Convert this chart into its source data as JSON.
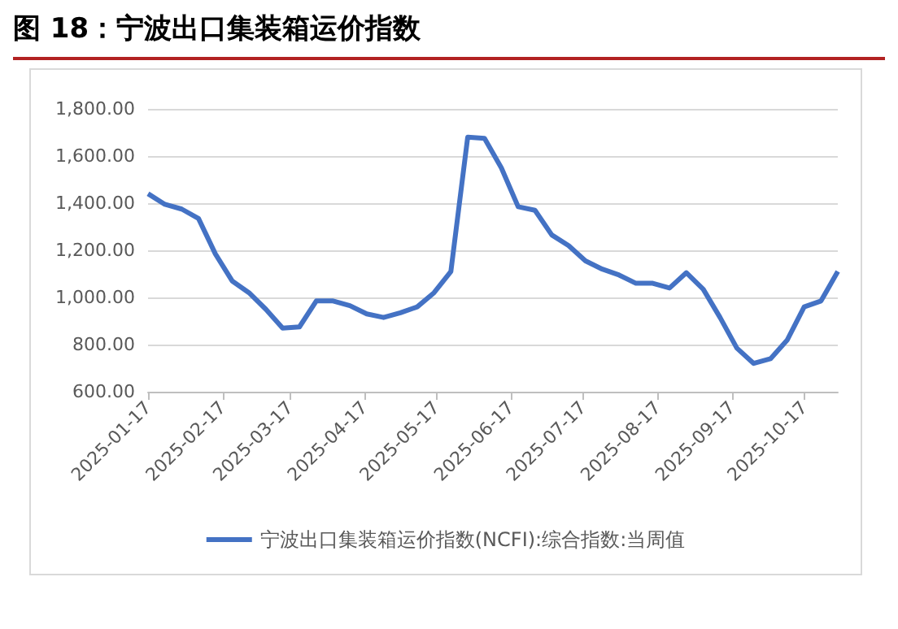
{
  "chart_data": {
    "type": "line",
    "title": "图 18：宁波出口集装箱运价指数",
    "x": [
      "2025-01-17",
      "2025-01-24",
      "2025-01-31",
      "2025-02-07",
      "2025-02-14",
      "2025-02-21",
      "2025-02-28",
      "2025-03-07",
      "2025-03-14",
      "2025-03-21",
      "2025-03-28",
      "2025-04-04",
      "2025-04-11",
      "2025-04-18",
      "2025-04-25",
      "2025-05-02",
      "2025-05-09",
      "2025-05-16",
      "2025-05-23",
      "2025-05-30",
      "2025-06-06",
      "2025-06-13",
      "2025-06-20",
      "2025-06-27",
      "2025-07-04",
      "2025-07-11",
      "2025-07-18",
      "2025-07-25",
      "2025-08-01",
      "2025-08-08",
      "2025-08-15",
      "2025-08-22",
      "2025-08-29",
      "2025-09-05",
      "2025-09-12",
      "2025-09-19",
      "2025-09-26",
      "2025-10-03",
      "2025-10-10",
      "2025-10-17",
      "2025-10-24",
      "2025-10-31"
    ],
    "series": [
      {
        "name": "宁波出口集装箱运价指数(NCFI):综合指数:当周值",
        "color": "#4472c4",
        "values": [
          1440,
          1395,
          1375,
          1335,
          1185,
          1070,
          1020,
          950,
          870,
          875,
          985,
          985,
          965,
          930,
          915,
          935,
          960,
          1020,
          1110,
          1680,
          1675,
          1550,
          1385,
          1370,
          1265,
          1220,
          1155,
          1120,
          1095,
          1060,
          1060,
          1040,
          1105,
          1035,
          915,
          785,
          720,
          740,
          820,
          960,
          985,
          1110
        ]
      }
    ],
    "xlim": [
      "2025-01-17",
      "2025-10-31"
    ],
    "xticks": [
      "2025-01-17",
      "2025-02-17",
      "2025-03-17",
      "2025-04-17",
      "2025-05-17",
      "2025-06-17",
      "2025-07-17",
      "2025-08-17",
      "2025-09-17",
      "2025-10-17"
    ],
    "ylim": [
      600,
      1800
    ],
    "yticks": [
      {
        "value": 600,
        "label": "600.00"
      },
      {
        "value": 800,
        "label": "800.00"
      },
      {
        "value": 1000,
        "label": "1,000.00"
      },
      {
        "value": 1200,
        "label": "1,200.00"
      },
      {
        "value": 1400,
        "label": "1,400.00"
      },
      {
        "value": 1600,
        "label": "1,600.00"
      },
      {
        "value": 1800,
        "label": "1,800.00"
      }
    ],
    "grid": "y",
    "legend": "bottom",
    "marker": "none",
    "line_style": "solid"
  }
}
